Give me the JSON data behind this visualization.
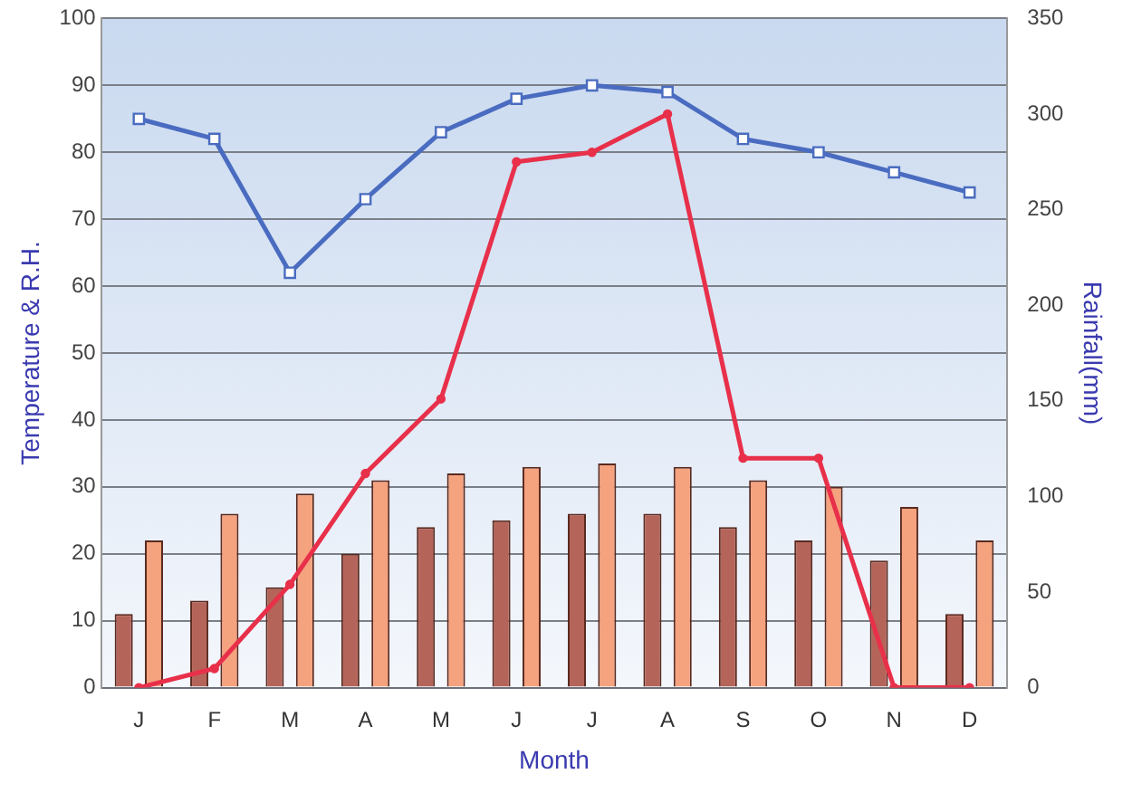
{
  "chart_data": {
    "type": "bar",
    "xlabel": "Month",
    "ylabel": "Temperature & R.H.",
    "y2label": "Rainfall(mm)",
    "categories": [
      "J",
      "F",
      "M",
      "A",
      "M",
      "J",
      "J",
      "A",
      "S",
      "O",
      "N",
      "D"
    ],
    "series": [
      {
        "color": "#b5645a",
        "values": [
          11,
          13,
          15,
          20,
          24,
          25,
          26,
          26,
          24,
          22,
          19,
          11
        ]
      },
      {
        "color": "#f5a27e",
        "values": [
          22,
          26,
          29,
          31,
          32,
          33,
          33.5,
          33,
          31,
          30,
          27,
          22
        ]
      },
      {
        "type": "line",
        "color": "#4a6cc0",
        "marker": "square",
        "values": [
          85,
          82,
          62,
          73,
          83,
          88,
          90,
          89,
          82,
          80,
          77,
          74
        ]
      },
      {
        "type": "line",
        "color": "#e8304a",
        "axis": "y2",
        "marker": "circle",
        "values": [
          0,
          10,
          54,
          112,
          151,
          275,
          280,
          300,
          120,
          120,
          0,
          0
        ]
      }
    ],
    "ylim": [
      0,
      100
    ],
    "yticks": [
      0,
      10,
      20,
      30,
      40,
      50,
      60,
      70,
      80,
      90,
      100
    ],
    "y2lim": [
      0,
      350
    ],
    "y2ticks": [
      0,
      50,
      100,
      150,
      200,
      250,
      300,
      350
    ],
    "grid": "y",
    "legend": false
  }
}
